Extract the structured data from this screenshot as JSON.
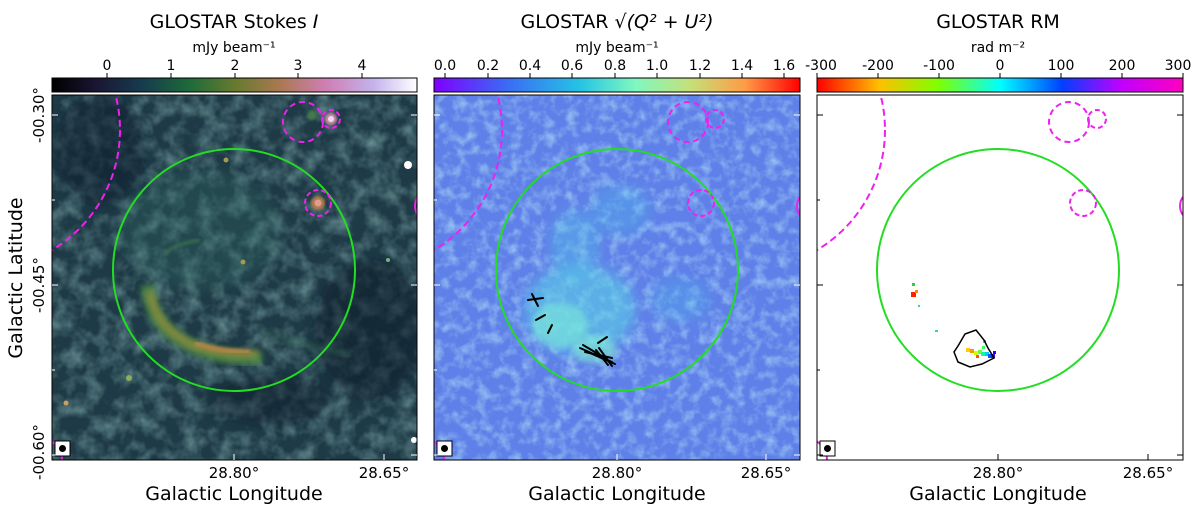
{
  "figure": {
    "ylabel": "Galactic Latitude",
    "xlabel": "Galactic Longitude",
    "yticks": [
      "-00.30°",
      "-00.45°",
      "-00.60°"
    ],
    "xticks": [
      "28.80°",
      "28.65°"
    ],
    "panels": [
      {
        "title": "GLOSTAR Stokes I",
        "title_main": "GLOSTAR Stokes",
        "title_symbol": "I",
        "colorbar_label": "mJy beam⁻¹",
        "colorbar_ticks": [
          "0",
          "1",
          "2",
          "3",
          "4"
        ],
        "colormap": "cubehelix",
        "colormap_range": [
          -0.8,
          4.8
        ],
        "background_color": "#223a44"
      },
      {
        "title": "GLOSTAR √(Q² + U²)",
        "title_main": "GLOSTAR",
        "title_symbol": "√(Q² + U²)",
        "colorbar_label": "mJy beam⁻¹",
        "colorbar_ticks": [
          "0.0",
          "0.2",
          "0.4",
          "0.6",
          "0.8",
          "1.0",
          "1.2",
          "1.4",
          "1.6"
        ],
        "colormap": "rainbow",
        "colormap_range": [
          0.0,
          1.7
        ],
        "background_color": "#6f8fea"
      },
      {
        "title": "GLOSTAR RM",
        "title_main": "GLOSTAR RM",
        "title_symbol": "",
        "colorbar_label": "rad m⁻²",
        "colorbar_ticks": [
          "-300",
          "-200",
          "-100",
          "0",
          "100",
          "200",
          "300"
        ],
        "colormap": "hsv",
        "colormap_range": [
          -300,
          300
        ],
        "background_color": "#ffffff"
      }
    ],
    "colors": {
      "snr_circle": "#22dd22",
      "hii_region": "#ee22ee",
      "vectors": "#000000",
      "axes": "#000000"
    }
  }
}
